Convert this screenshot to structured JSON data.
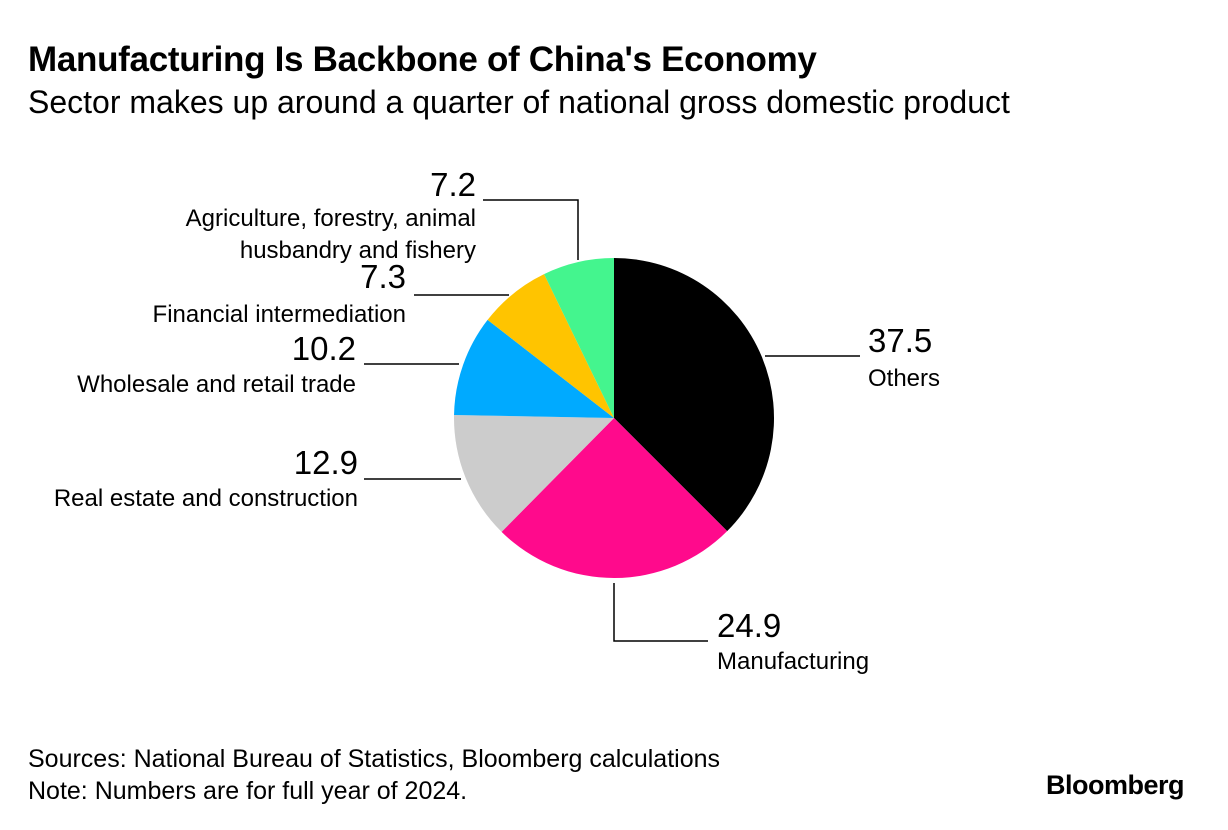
{
  "chart_data": {
    "type": "pie",
    "title": "Manufacturing Is Backbone of China's Economy",
    "subtitle": "Sector makes up around a quarter of national gross domestic product",
    "slices": [
      {
        "label": "Others",
        "value": 37.5,
        "value_label": "37.5",
        "color": "#000000"
      },
      {
        "label": "Manufacturing",
        "value": 24.9,
        "value_label": "24.9",
        "color": "#ff0a8c"
      },
      {
        "label": "Real estate and construction",
        "value": 12.9,
        "value_label": "12.9",
        "color": "#cccccc"
      },
      {
        "label": "Wholesale and retail trade",
        "value": 10.2,
        "value_label": "10.2",
        "color": "#00aaff"
      },
      {
        "label": "Financial intermediation",
        "value": 7.3,
        "value_label": "7.3",
        "color": "#ffc400"
      },
      {
        "label": "Agriculture, forestry, animal husbandry and fishery",
        "label_lines": [
          "Agriculture, forestry, animal",
          "husbandry and fishery"
        ],
        "value": 7.2,
        "value_label": "7.2",
        "color": "#44f58e"
      }
    ]
  },
  "footer": {
    "sources": "Sources: National Bureau of Statistics, Bloomberg calculations",
    "note": "Note: Numbers are for full year of 2024."
  },
  "brand": {
    "logo": "Bloomberg"
  }
}
